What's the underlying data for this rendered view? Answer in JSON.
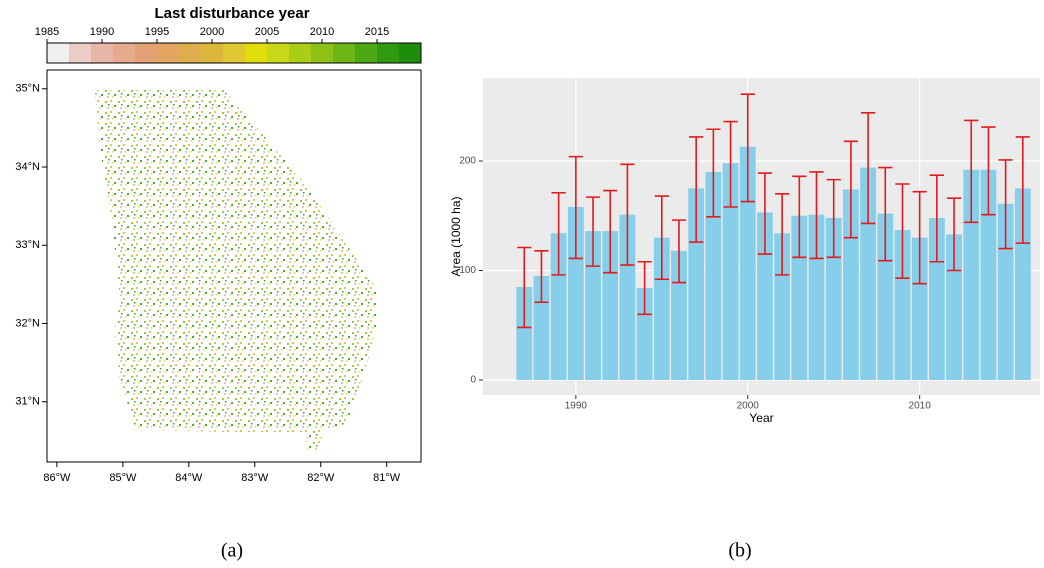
{
  "chart_data": [
    {
      "type": "map",
      "title": "Last disturbance year",
      "panel_label": "(a)",
      "colorbar": {
        "lim": [
          1985,
          2019
        ],
        "ticks": [
          1985,
          1990,
          1995,
          2000,
          2005,
          2010,
          2015
        ],
        "colors": [
          "#f0f0f0",
          "#ecccc4",
          "#e8b6a6",
          "#e6aa8c",
          "#e4a274",
          "#e2a662",
          "#dead4c",
          "#dcb83a",
          "#e0c832",
          "#e2dc0a",
          "#c8d818",
          "#aacd18",
          "#8cc218",
          "#6cb618",
          "#4ca814",
          "#329a10",
          "#1f8c0c"
        ]
      },
      "xlim": [
        -86.15,
        -80.48
      ],
      "ylim": [
        30.23,
        35.24
      ],
      "xticks": [
        {
          "value": -86,
          "label": "86°W"
        },
        {
          "value": -85,
          "label": "85°W"
        },
        {
          "value": -84,
          "label": "84°W"
        },
        {
          "value": -83,
          "label": "83°W"
        },
        {
          "value": -82,
          "label": "82°W"
        },
        {
          "value": -81,
          "label": "81°W"
        }
      ],
      "yticks": [
        {
          "value": 31,
          "label": "31°N"
        },
        {
          "value": 32,
          "label": "32°N"
        },
        {
          "value": 33,
          "label": "33°N"
        },
        {
          "value": 34,
          "label": "34°N"
        },
        {
          "value": 35,
          "label": "35°N"
        }
      ]
    },
    {
      "type": "bar",
      "panel_label": "(b)",
      "x_label": "Year",
      "y_label": "Area (1000 ha)",
      "color": "#87ceeb",
      "error_color": "#e31a1c",
      "grid": true,
      "x": [
        1987,
        1988,
        1989,
        1990,
        1991,
        1992,
        1993,
        1994,
        1995,
        1996,
        1997,
        1998,
        1999,
        2000,
        2001,
        2002,
        2003,
        2004,
        2005,
        2006,
        2007,
        2008,
        2009,
        2010,
        2011,
        2012,
        2013,
        2014,
        2015,
        2016
      ],
      "values": [
        85,
        95,
        134,
        158,
        136,
        136,
        151,
        84,
        130,
        118,
        175,
        190,
        198,
        213,
        153,
        134,
        150,
        151,
        148,
        174,
        194,
        152,
        137,
        130,
        148,
        133,
        192,
        192,
        161,
        175
      ],
      "lower": [
        48,
        71,
        96,
        111,
        104,
        98,
        105,
        60,
        92,
        89,
        126,
        149,
        158,
        163,
        115,
        96,
        112,
        111,
        112,
        130,
        143,
        109,
        93,
        88,
        108,
        100,
        144,
        151,
        120,
        125
      ],
      "upper": [
        121,
        118,
        171,
        204,
        167,
        173,
        197,
        108,
        168,
        146,
        222,
        229,
        236,
        261,
        189,
        170,
        186,
        190,
        183,
        218,
        244,
        194,
        179,
        172,
        187,
        166,
        237,
        231,
        201,
        222
      ],
      "xlim": [
        1984.6,
        2017
      ],
      "ylim": [
        -13.7,
        275.8
      ],
      "xticks": [
        1990,
        2000,
        2010
      ],
      "yticks": [
        0,
        100,
        200
      ]
    }
  ]
}
